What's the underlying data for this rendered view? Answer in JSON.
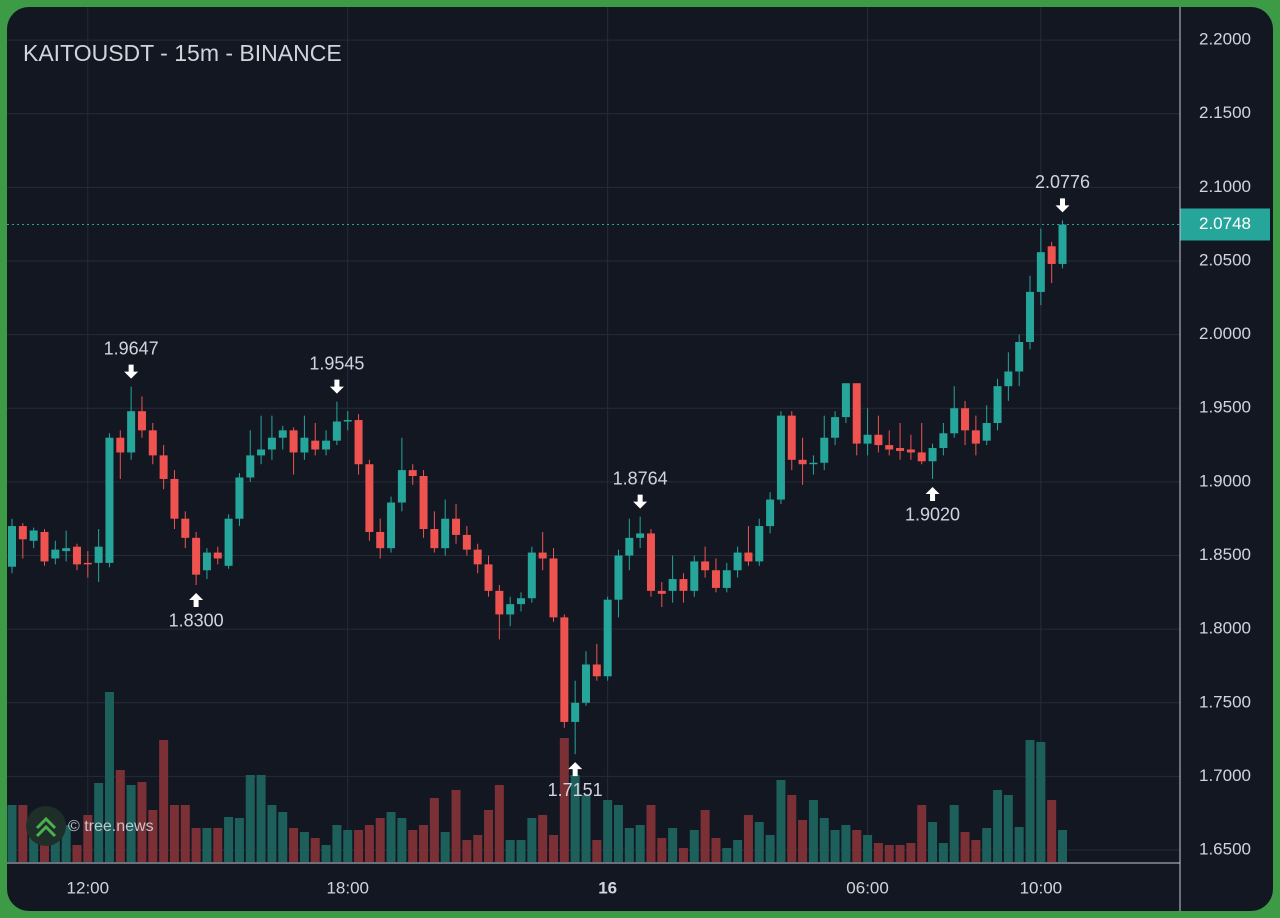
{
  "chart_data": {
    "type": "candlestick",
    "title": "KAITOUSDT - 15m - BINANCE",
    "watermark": "© tree.news",
    "categories": [
      null,
      null,
      null,
      null,
      null,
      null,
      null,
      "12:00",
      null,
      null,
      null,
      null,
      null,
      null,
      null,
      null,
      null,
      null,
      null,
      null,
      null,
      null,
      null,
      null,
      null,
      null,
      null,
      null,
      null,
      null,
      null,
      "18:00",
      null,
      null,
      null,
      null,
      null,
      null,
      null,
      null,
      null,
      null,
      null,
      null,
      null,
      null,
      null,
      null,
      null,
      null,
      null,
      null,
      null,
      null,
      null,
      "16",
      null,
      null,
      null,
      null,
      null,
      null,
      null,
      null,
      null,
      null,
      null,
      null,
      null,
      null,
      null,
      null,
      null,
      null,
      null,
      null,
      null,
      null,
      null,
      "06:00",
      null,
      null,
      null,
      null,
      null,
      null,
      null,
      null,
      null,
      null,
      null,
      null,
      null,
      null,
      null,
      "10:00",
      null,
      null
    ],
    "open": [
      1.8424,
      1.87,
      1.86,
      1.866,
      1.848,
      1.853,
      1.856,
      1.845,
      1.845,
      1.845,
      1.93,
      1.92,
      1.948,
      1.935,
      1.918,
      1.902,
      1.875,
      1.862,
      1.84,
      1.852,
      1.843,
      1.875,
      1.903,
      1.918,
      1.922,
      1.93,
      1.935,
      1.92,
      1.928,
      1.922,
      1.928,
      1.941,
      1.942,
      1.912,
      1.866,
      1.855,
      1.886,
      1.908,
      1.904,
      1.868,
      1.855,
      1.875,
      1.864,
      1.854,
      1.844,
      1.826,
      1.81,
      1.817,
      1.821,
      1.852,
      1.848,
      1.808,
      1.737,
      1.75,
      1.776,
      1.768,
      1.82,
      1.85,
      1.862,
      1.865,
      1.826,
      1.826,
      1.834,
      1.826,
      1.846,
      1.84,
      1.828,
      1.84,
      1.852,
      1.846,
      1.87,
      1.888,
      1.945,
      1.915,
      1.912,
      1.913,
      1.93,
      1.944,
      1.967,
      1.926,
      1.932,
      1.925,
      1.923,
      1.922,
      1.92,
      1.914,
      1.923,
      1.933,
      1.95,
      1.935,
      1.928,
      1.94,
      1.965,
      1.975,
      1.995,
      2.029,
      2.06,
      2.048
    ],
    "high": [
      1.875,
      1.872,
      1.869,
      1.868,
      1.86,
      1.867,
      1.858,
      1.853,
      1.868,
      1.933,
      1.935,
      1.9647,
      1.958,
      1.94,
      1.925,
      1.908,
      1.88,
      1.866,
      1.855,
      1.856,
      1.878,
      1.906,
      1.935,
      1.945,
      1.945,
      1.938,
      1.937,
      1.945,
      1.94,
      1.935,
      1.9545,
      1.948,
      1.946,
      1.915,
      1.875,
      1.89,
      1.93,
      1.912,
      1.908,
      1.88,
      1.888,
      1.885,
      1.87,
      1.858,
      1.85,
      1.83,
      1.822,
      1.825,
      1.856,
      1.866,
      1.855,
      1.81,
      1.765,
      1.785,
      1.79,
      1.822,
      1.854,
      1.875,
      1.8764,
      1.868,
      1.832,
      1.85,
      1.838,
      1.85,
      1.856,
      1.848,
      1.845,
      1.856,
      1.87,
      1.875,
      1.893,
      1.948,
      1.948,
      1.93,
      1.918,
      1.945,
      1.948,
      1.967,
      1.967,
      1.95,
      1.945,
      1.935,
      1.94,
      1.932,
      1.94,
      1.926,
      1.94,
      1.965,
      1.955,
      1.945,
      1.952,
      1.97,
      1.988,
      2.0,
      2.04,
      2.072,
      2.063,
      2.0776
    ],
    "low": [
      1.838,
      1.848,
      1.855,
      1.843,
      1.844,
      1.846,
      1.84,
      1.835,
      1.832,
      1.842,
      1.902,
      1.915,
      1.93,
      1.912,
      1.895,
      1.868,
      1.855,
      1.83,
      1.834,
      1.844,
      1.841,
      1.87,
      1.9,
      1.912,
      1.915,
      1.922,
      1.905,
      1.915,
      1.918,
      1.918,
      1.925,
      1.935,
      1.905,
      1.86,
      1.848,
      1.852,
      1.88,
      1.898,
      1.862,
      1.852,
      1.85,
      1.858,
      1.85,
      1.838,
      1.822,
      1.793,
      1.802,
      1.812,
      1.818,
      1.84,
      1.805,
      1.733,
      1.7151,
      1.748,
      1.765,
      1.765,
      1.808,
      1.84,
      1.855,
      1.822,
      1.815,
      1.818,
      1.818,
      1.822,
      1.835,
      1.825,
      1.825,
      1.835,
      1.843,
      1.843,
      1.865,
      1.885,
      1.908,
      1.898,
      1.905,
      1.908,
      1.925,
      1.94,
      1.918,
      1.918,
      1.92,
      1.918,
      1.915,
      1.915,
      1.912,
      1.902,
      1.918,
      1.93,
      1.925,
      1.918,
      1.925,
      1.935,
      1.955,
      1.965,
      1.99,
      2.02,
      2.035,
      2.045
    ],
    "close": [
      1.87,
      1.861,
      1.867,
      1.846,
      1.854,
      1.855,
      1.844,
      1.844,
      1.856,
      1.93,
      1.92,
      1.948,
      1.935,
      1.918,
      1.902,
      1.875,
      1.862,
      1.837,
      1.852,
      1.848,
      1.875,
      1.903,
      1.918,
      1.922,
      1.93,
      1.935,
      1.92,
      1.93,
      1.922,
      1.928,
      1.941,
      1.942,
      1.912,
      1.866,
      1.855,
      1.886,
      1.908,
      1.904,
      1.868,
      1.855,
      1.875,
      1.864,
      1.854,
      1.844,
      1.826,
      1.81,
      1.817,
      1.821,
      1.852,
      1.848,
      1.808,
      1.737,
      1.75,
      1.776,
      1.768,
      1.82,
      1.85,
      1.862,
      1.865,
      1.826,
      1.824,
      1.834,
      1.826,
      1.846,
      1.84,
      1.828,
      1.84,
      1.852,
      1.846,
      1.87,
      1.888,
      1.945,
      1.915,
      1.912,
      1.913,
      1.93,
      1.944,
      1.967,
      1.926,
      1.932,
      1.925,
      1.922,
      1.921,
      1.92,
      1.914,
      1.923,
      1.933,
      1.95,
      1.935,
      1.926,
      1.94,
      1.965,
      1.975,
      1.995,
      2.029,
      2.056,
      2.048,
      2.0748
    ],
    "volume": [
      57,
      57,
      47,
      42,
      32,
      37,
      17,
      47,
      79,
      170,
      92,
      77,
      80,
      52,
      122,
      57,
      57,
      34,
      34,
      34,
      45,
      44,
      87,
      87,
      57,
      50,
      34,
      30,
      24,
      17,
      37,
      32,
      32,
      37,
      44,
      50,
      44,
      32,
      37,
      64,
      30,
      72,
      22,
      27,
      52,
      77,
      22,
      22,
      44,
      47,
      27,
      124,
      87,
      67,
      22,
      62,
      57,
      34,
      37,
      57,
      24,
      34,
      14,
      32,
      52,
      24,
      14,
      22,
      47,
      40,
      27,
      82,
      67,
      42,
      62,
      44,
      32,
      37,
      32,
      27,
      19,
      17,
      17,
      19,
      57,
      40,
      19,
      57,
      30,
      22,
      34,
      72,
      67,
      35,
      122,
      120,
      62,
      32
    ],
    "vlim": [
      0,
      200
    ],
    "up_color": "#26a69a",
    "down_color": "#ef5350",
    "volume_up_color": "#1d5f5a",
    "volume_down_color": "#7a3034",
    "ylim": [
      1.6378,
      2.2028
    ],
    "yticks": [
      {
        "value": 2.2,
        "label": "2.2000"
      },
      {
        "value": 2.15,
        "label": "2.1500"
      },
      {
        "value": 2.1,
        "label": "2.1000"
      },
      {
        "value": 2.05,
        "label": "2.0500"
      },
      {
        "value": 2.0,
        "label": "2.0000"
      },
      {
        "value": 1.95,
        "label": "1.9500"
      },
      {
        "value": 1.9,
        "label": "1.9000"
      },
      {
        "value": 1.85,
        "label": "1.8500"
      },
      {
        "value": 1.8,
        "label": "1.8000"
      },
      {
        "value": 1.75,
        "label": "1.7500"
      },
      {
        "value": 1.7,
        "label": "1.7000"
      },
      {
        "value": 1.65,
        "label": "1.6500"
      }
    ],
    "grid": true,
    "annotations": [
      {
        "candle": 11,
        "text": "1.9647",
        "side": "above"
      },
      {
        "candle": 17,
        "text": "1.8300",
        "side": "below"
      },
      {
        "candle": 30,
        "text": "1.9545",
        "side": "above"
      },
      {
        "candle": 52,
        "text": "1.7151",
        "side": "below"
      },
      {
        "candle": 58,
        "text": "1.8764",
        "side": "above"
      },
      {
        "candle": 85,
        "text": "1.9020",
        "side": "below"
      },
      {
        "candle": 97,
        "text": "2.0776",
        "side": "above"
      }
    ]
  }
}
